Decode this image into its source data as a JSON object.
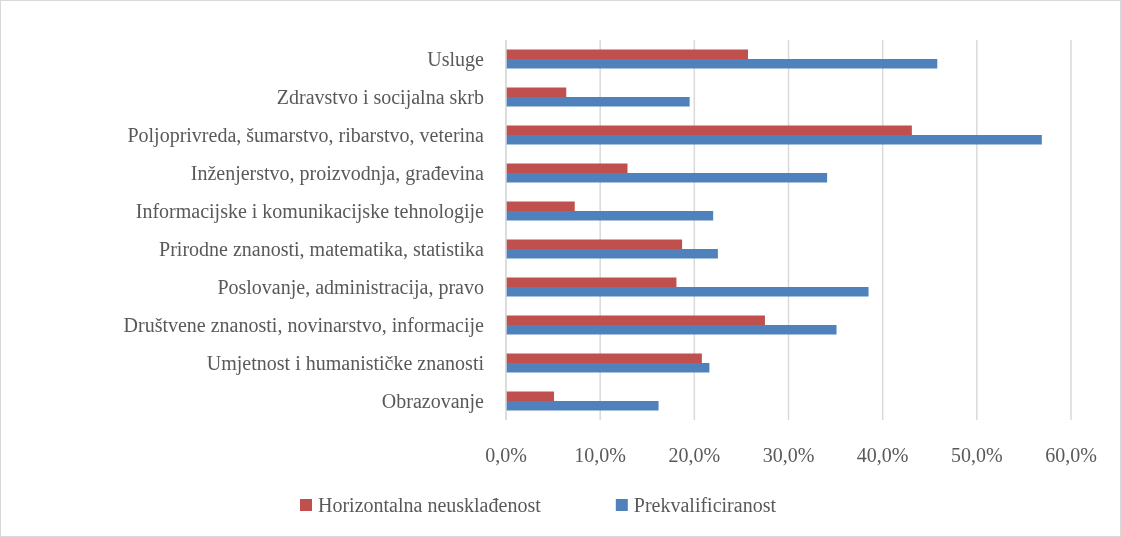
{
  "chart_data": {
    "type": "bar",
    "orientation": "horizontal",
    "categories": [
      "Usluge",
      "Zdravstvo i socijalna skrb",
      "Poljoprivreda, šumarstvo, ribarstvo, veterina",
      "Inženjerstvo, proizvodnja, građevina",
      "Informacijske i komunikacijske tehnologije",
      "Prirodne znanosti, matematika, statistika",
      "Poslovanje, administracija, pravo",
      "Društvene znanosti, novinarstvo, informacije",
      "Umjetnost i humanističke znanosti",
      "Obrazovanje"
    ],
    "series": [
      {
        "name": "Horizontalna neusklađenost",
        "color": "#c0504d",
        "values": [
          25.7,
          6.4,
          43.1,
          12.9,
          7.3,
          18.7,
          18.1,
          27.5,
          20.8,
          5.1
        ]
      },
      {
        "name": "Prekvalificiranost",
        "color": "#4f81bd",
        "values": [
          45.8,
          19.5,
          56.9,
          34.1,
          22.0,
          22.5,
          38.5,
          35.1,
          21.6,
          16.2
        ]
      }
    ],
    "xlim": [
      0,
      60
    ],
    "xticks": [
      {
        "value": 0,
        "label": "0,0%"
      },
      {
        "value": 10,
        "label": "10,0%"
      },
      {
        "value": 20,
        "label": "20,0%"
      },
      {
        "value": 30,
        "label": "30,0%"
      },
      {
        "value": 40,
        "label": "40,0%"
      },
      {
        "value": 50,
        "label": "50,0%"
      },
      {
        "value": 60,
        "label": "60,0%"
      }
    ],
    "grid": "x",
    "legend": "bottom"
  }
}
